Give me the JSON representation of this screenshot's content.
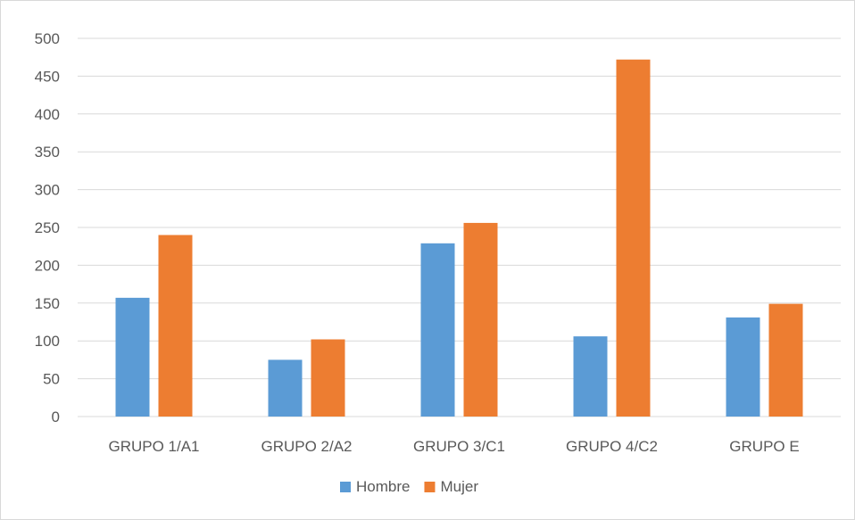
{
  "chart_data": {
    "type": "bar",
    "categories": [
      "GRUPO 1/A1",
      "GRUPO 2/A2",
      "GRUPO 3/C1",
      "GRUPO 4/C2",
      "GRUPO E"
    ],
    "series": [
      {
        "name": "Hombre",
        "color": "#5b9bd5",
        "values": [
          157,
          75,
          229,
          106,
          131
        ]
      },
      {
        "name": "Mujer",
        "color": "#ed7d31",
        "values": [
          240,
          102,
          256,
          472,
          149
        ]
      }
    ],
    "ylim": [
      0,
      500
    ],
    "yticks": [
      0,
      50,
      100,
      150,
      200,
      250,
      300,
      350,
      400,
      450,
      500
    ],
    "grid": true,
    "gridColor": "#d9d9d9",
    "legend": "bottom-center",
    "title": "",
    "xlabel": "",
    "ylabel": ""
  }
}
